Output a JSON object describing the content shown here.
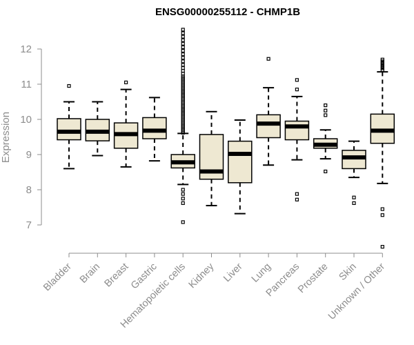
{
  "colors": {
    "box_fill": "#EEE8D2",
    "stroke": "#000000",
    "axis": "#8c8c8c",
    "text": "#8c8c8c"
  },
  "chart_data": {
    "type": "boxplot",
    "title": "ENSG00000255112 - CHMP1B",
    "xlabel": "",
    "ylabel": "Expression",
    "ylim": [
      6.3,
      12.6
    ],
    "yticks": [
      7,
      8,
      9,
      10,
      11,
      12
    ],
    "categories": [
      "Bladder",
      "Brain",
      "Breast",
      "Gastric",
      "Hematopoietic cells",
      "Kidney",
      "Liver",
      "Lung",
      "Pancreas",
      "Prostate",
      "Skin",
      "Unknown / Other"
    ],
    "series": [
      {
        "name": "Bladder",
        "whisker_low": 8.6,
        "q1": 9.42,
        "median": 9.65,
        "q3": 10.02,
        "whisker_high": 10.5,
        "outliers": [
          10.95
        ]
      },
      {
        "name": "Brain",
        "whisker_low": 8.97,
        "q1": 9.39,
        "median": 9.65,
        "q3": 10.0,
        "whisker_high": 10.5,
        "outliers": []
      },
      {
        "name": "Breast",
        "whisker_low": 8.65,
        "q1": 9.18,
        "median": 9.58,
        "q3": 9.9,
        "whisker_high": 10.85,
        "outliers": [
          11.05
        ]
      },
      {
        "name": "Gastric",
        "whisker_low": 8.82,
        "q1": 9.45,
        "median": 9.68,
        "q3": 10.05,
        "whisker_high": 10.62,
        "outliers": []
      },
      {
        "name": "Hematopoietic cells",
        "whisker_low": 8.15,
        "q1": 8.62,
        "median": 8.78,
        "q3": 9.0,
        "whisker_high": 9.6,
        "outliers": [
          7.08,
          7.62,
          7.75,
          7.88,
          8.0,
          9.62,
          9.66,
          9.7,
          9.74,
          9.78,
          9.82,
          9.86,
          9.9,
          9.94,
          9.98,
          10.02,
          10.06,
          10.1,
          10.14,
          10.18,
          10.22,
          10.26,
          10.3,
          10.34,
          10.38,
          10.42,
          10.46,
          10.5,
          10.54,
          10.58,
          10.62,
          10.66,
          10.7,
          10.74,
          10.78,
          10.82,
          10.86,
          10.9,
          10.94,
          10.98,
          11.02,
          11.06,
          11.1,
          11.14,
          11.18,
          11.22,
          11.3,
          11.38,
          11.46,
          11.55,
          11.65,
          11.75,
          11.85,
          11.95,
          12.05,
          12.15,
          12.25,
          12.35,
          12.45,
          12.55
        ]
      },
      {
        "name": "Kidney",
        "whisker_low": 7.55,
        "q1": 8.3,
        "median": 8.52,
        "q3": 9.57,
        "whisker_high": 10.22,
        "outliers": []
      },
      {
        "name": "Liver",
        "whisker_low": 7.32,
        "q1": 8.2,
        "median": 9.02,
        "q3": 9.38,
        "whisker_high": 9.98,
        "outliers": []
      },
      {
        "name": "Lung",
        "whisker_low": 8.7,
        "q1": 9.48,
        "median": 9.88,
        "q3": 10.13,
        "whisker_high": 10.9,
        "outliers": [
          11.72
        ]
      },
      {
        "name": "Pancreas",
        "whisker_low": 8.85,
        "q1": 9.42,
        "median": 9.8,
        "q3": 9.95,
        "whisker_high": 10.65,
        "outliers": [
          7.72,
          7.88,
          10.85,
          11.12
        ]
      },
      {
        "name": "Prostate",
        "whisker_low": 8.88,
        "q1": 9.18,
        "median": 9.28,
        "q3": 9.45,
        "whisker_high": 9.7,
        "outliers": [
          8.52,
          10.12,
          10.25,
          10.4
        ]
      },
      {
        "name": "Skin",
        "whisker_low": 8.35,
        "q1": 8.6,
        "median": 8.92,
        "q3": 9.12,
        "whisker_high": 9.38,
        "outliers": [
          7.62,
          7.78
        ]
      },
      {
        "name": "Unknown / Other",
        "whisker_low": 8.18,
        "q1": 9.32,
        "median": 9.68,
        "q3": 10.15,
        "whisker_high": 11.35,
        "outliers": [
          6.38,
          7.28,
          7.45,
          11.4,
          11.45,
          11.5,
          11.55,
          11.6,
          11.65,
          11.7
        ]
      }
    ]
  }
}
